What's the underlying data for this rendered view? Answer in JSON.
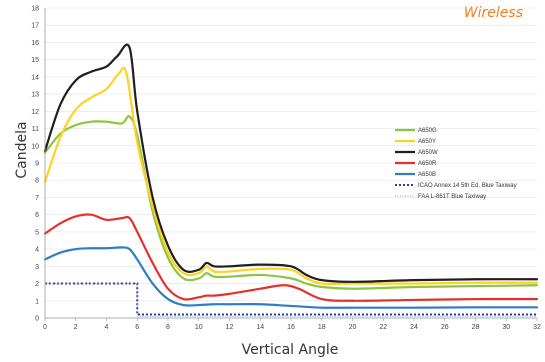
{
  "brand": "Wireless",
  "chart_data": {
    "type": "line",
    "xlabel": "Vertical Angle",
    "ylabel": "Candela",
    "xlim": [
      0,
      32
    ],
    "ylim": [
      0,
      18
    ],
    "x_ticks": [
      0,
      2,
      4,
      6,
      8,
      10,
      12,
      14,
      16,
      18,
      20,
      22,
      24,
      26,
      28,
      30,
      32
    ],
    "y_ticks": [
      0,
      1,
      2,
      3,
      4,
      5,
      6,
      7,
      8,
      9,
      10,
      11,
      12,
      13,
      14,
      15,
      16,
      17,
      18
    ],
    "legend_position": "right",
    "series": [
      {
        "name": "A650G",
        "color": "#8cc63f",
        "style": "solid",
        "points": [
          [
            0,
            9.6
          ],
          [
            1,
            10.7
          ],
          [
            2,
            11.2
          ],
          [
            3,
            11.4
          ],
          [
            4,
            11.4
          ],
          [
            5,
            11.3
          ],
          [
            5.5,
            11.7
          ],
          [
            6,
            10.6
          ],
          [
            7,
            6.2
          ],
          [
            8,
            3.5
          ],
          [
            9,
            2.3
          ],
          [
            10,
            2.3
          ],
          [
            10.5,
            2.6
          ],
          [
            11,
            2.4
          ],
          [
            12,
            2.4
          ],
          [
            14,
            2.5
          ],
          [
            16,
            2.3
          ],
          [
            17,
            2.0
          ],
          [
            18,
            1.8
          ],
          [
            20,
            1.7
          ],
          [
            24,
            1.8
          ],
          [
            28,
            1.85
          ],
          [
            32,
            1.9
          ]
        ]
      },
      {
        "name": "A650Y",
        "color": "#ffd21f",
        "style": "solid",
        "points": [
          [
            0,
            7.9
          ],
          [
            1,
            10.5
          ],
          [
            2,
            12.1
          ],
          [
            3,
            12.8
          ],
          [
            4,
            13.3
          ],
          [
            4.8,
            14.2
          ],
          [
            5.3,
            14.2
          ],
          [
            6,
            10.2
          ],
          [
            7,
            6.5
          ],
          [
            8,
            3.8
          ],
          [
            9,
            2.6
          ],
          [
            10,
            2.6
          ],
          [
            10.5,
            3.0
          ],
          [
            11,
            2.7
          ],
          [
            12,
            2.7
          ],
          [
            14,
            2.85
          ],
          [
            16,
            2.8
          ],
          [
            17,
            2.3
          ],
          [
            18,
            2.0
          ],
          [
            20,
            2.0
          ],
          [
            24,
            2.0
          ],
          [
            28,
            2.05
          ],
          [
            32,
            2.05
          ]
        ]
      },
      {
        "name": "A650W",
        "color": "#1f1f1f",
        "style": "solid",
        "points": [
          [
            0,
            9.7
          ],
          [
            1,
            12.4
          ],
          [
            2,
            13.8
          ],
          [
            3,
            14.3
          ],
          [
            4,
            14.6
          ],
          [
            4.7,
            15.2
          ],
          [
            5.5,
            15.7
          ],
          [
            6,
            12.0
          ],
          [
            7,
            7.0
          ],
          [
            8,
            4.2
          ],
          [
            9,
            2.8
          ],
          [
            10,
            2.8
          ],
          [
            10.5,
            3.2
          ],
          [
            11,
            3.0
          ],
          [
            12,
            3.0
          ],
          [
            14,
            3.1
          ],
          [
            16,
            3.0
          ],
          [
            17,
            2.5
          ],
          [
            18,
            2.2
          ],
          [
            20,
            2.1
          ],
          [
            24,
            2.2
          ],
          [
            28,
            2.25
          ],
          [
            32,
            2.25
          ]
        ]
      },
      {
        "name": "A650R",
        "color": "#e5312b",
        "style": "solid",
        "points": [
          [
            0,
            4.9
          ],
          [
            1,
            5.5
          ],
          [
            2,
            5.9
          ],
          [
            3,
            6.0
          ],
          [
            4,
            5.7
          ],
          [
            5,
            5.8
          ],
          [
            5.5,
            5.8
          ],
          [
            6,
            5.0
          ],
          [
            7,
            3.2
          ],
          [
            8,
            1.7
          ],
          [
            9,
            1.1
          ],
          [
            10,
            1.2
          ],
          [
            10.5,
            1.3
          ],
          [
            11,
            1.3
          ],
          [
            12,
            1.4
          ],
          [
            14,
            1.7
          ],
          [
            15.5,
            1.9
          ],
          [
            16.5,
            1.7
          ],
          [
            18,
            1.1
          ],
          [
            20,
            1.0
          ],
          [
            24,
            1.05
          ],
          [
            28,
            1.1
          ],
          [
            32,
            1.1
          ]
        ]
      },
      {
        "name": "A650B",
        "color": "#2f7ec1",
        "style": "solid",
        "points": [
          [
            0,
            3.4
          ],
          [
            1,
            3.8
          ],
          [
            2,
            4.0
          ],
          [
            3,
            4.05
          ],
          [
            4,
            4.05
          ],
          [
            5,
            4.1
          ],
          [
            5.5,
            4.0
          ],
          [
            6,
            3.4
          ],
          [
            7,
            2.0
          ],
          [
            8,
            1.1
          ],
          [
            9,
            0.75
          ],
          [
            10,
            0.75
          ],
          [
            11,
            0.8
          ],
          [
            12,
            0.8
          ],
          [
            14,
            0.8
          ],
          [
            16,
            0.7
          ],
          [
            18,
            0.6
          ],
          [
            20,
            0.6
          ],
          [
            24,
            0.6
          ],
          [
            28,
            0.62
          ],
          [
            32,
            0.62
          ]
        ]
      },
      {
        "name": "ICAO Annex 14 5th Ed. Blue Taxiway",
        "color": "#2b3fa0",
        "style": "dotted-thick",
        "points": [
          [
            0,
            2.0
          ],
          [
            6,
            2.0
          ],
          [
            6,
            0.2
          ],
          [
            32,
            0.2
          ]
        ]
      },
      {
        "name": "FAA L-861T Blue Taxiway",
        "color": "#7f9fd8",
        "style": "dotted-thin",
        "points": [
          [
            0,
            2.0
          ],
          [
            6,
            2.0
          ],
          [
            6,
            0.1
          ],
          [
            32,
            0.1
          ]
        ]
      }
    ]
  }
}
